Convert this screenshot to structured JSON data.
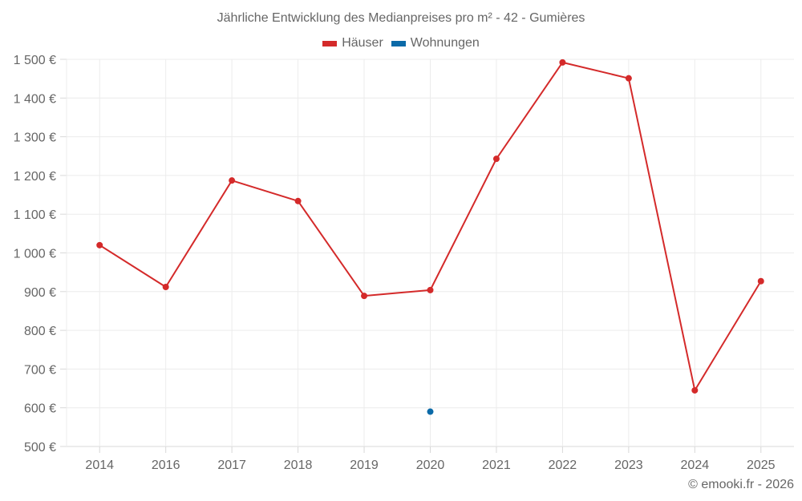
{
  "chart_data": {
    "type": "line",
    "title": "Jährliche Entwicklung des Medianpreises pro m² - 42 - Gumières",
    "categories": [
      "2014",
      "2016",
      "2017",
      "2018",
      "2019",
      "2020",
      "2021",
      "2022",
      "2023",
      "2024",
      "2025"
    ],
    "series": [
      {
        "name": "Häuser",
        "color": "#d42a2a",
        "values": [
          1020,
          912,
          1187,
          1134,
          889,
          904,
          1243,
          1492,
          1451,
          645,
          927
        ]
      },
      {
        "name": "Wohnungen",
        "color": "#0b6aa8",
        "values": [
          null,
          null,
          null,
          null,
          null,
          590,
          null,
          null,
          null,
          null,
          null
        ]
      }
    ],
    "xlabel": "",
    "ylabel": "",
    "ylim": [
      500,
      1500
    ],
    "yticks": [
      "500 €",
      "600 €",
      "700 €",
      "800 €",
      "900 €",
      "1 000 €",
      "1 100 €",
      "1 200 €",
      "1 300 €",
      "1 400 €",
      "1 500 €"
    ],
    "grid": true,
    "legend_position": "top"
  },
  "credit": "© emooki.fr - 2026"
}
